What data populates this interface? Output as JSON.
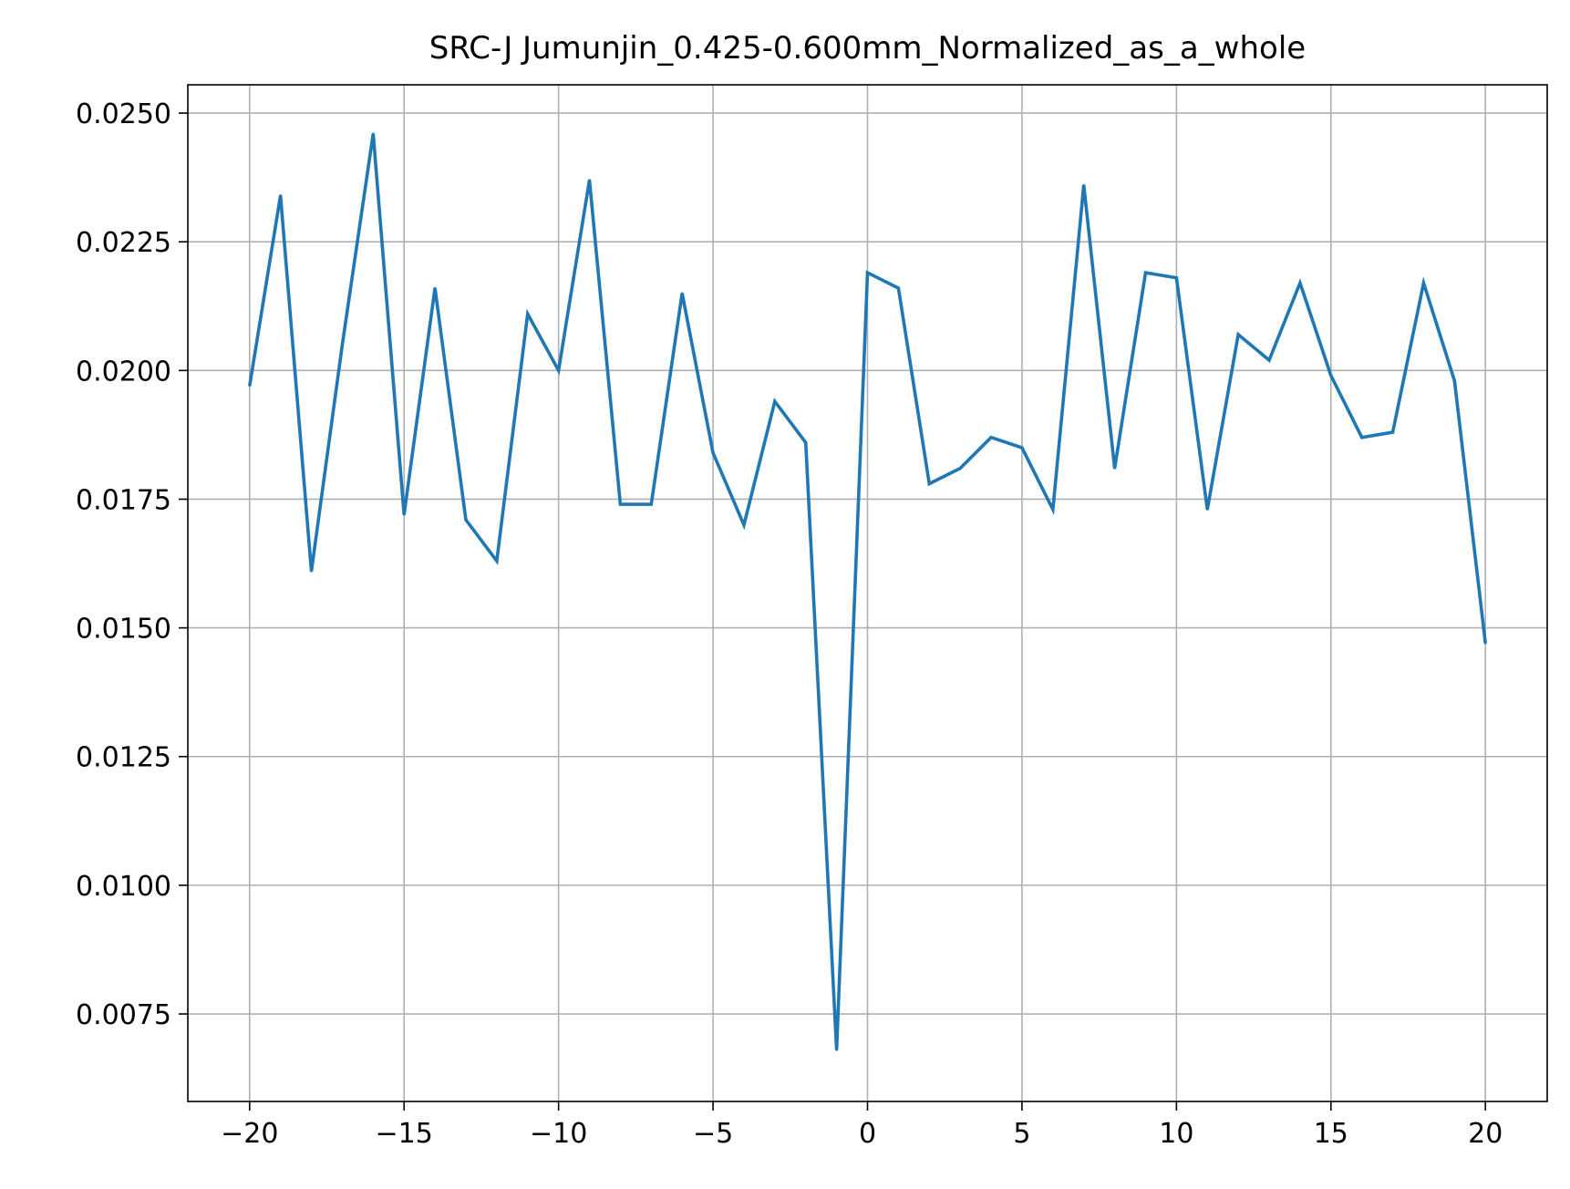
{
  "chart_data": {
    "type": "line",
    "title": "SRC-J Jumunjin_0.425-0.600mm_Normalized_as_a_whole",
    "xlabel": "",
    "ylabel": "",
    "xlim": [
      -22,
      22
    ],
    "ylim": [
      0.0058,
      0.02555
    ],
    "xticks": [
      -20,
      -15,
      -10,
      -5,
      0,
      5,
      10,
      15,
      20
    ],
    "xtick_labels": [
      "−20",
      "−15",
      "−10",
      "−5",
      "0",
      "5",
      "10",
      "15",
      "20"
    ],
    "yticks": [
      0.0075,
      0.01,
      0.0125,
      0.015,
      0.0175,
      0.02,
      0.0225,
      0.025
    ],
    "ytick_labels": [
      "0.0075",
      "0.0100",
      "0.0125",
      "0.0150",
      "0.0175",
      "0.0200",
      "0.0225",
      "0.0250"
    ],
    "grid": true,
    "series": [
      {
        "color": "#1f77b4",
        "x": [
          -20,
          -19,
          -18,
          -17,
          -16,
          -15,
          -14,
          -13,
          -12,
          -11,
          -10,
          -9,
          -8,
          -7,
          -6,
          -5,
          -4,
          -3,
          -2,
          -1,
          0,
          1,
          2,
          3,
          4,
          5,
          6,
          7,
          8,
          9,
          10,
          11,
          12,
          13,
          14,
          15,
          16,
          17,
          18,
          19,
          20
        ],
        "y": [
          0.0197,
          0.0234,
          0.0161,
          0.0205,
          0.0246,
          0.0172,
          0.0216,
          0.0171,
          0.0163,
          0.0211,
          0.02,
          0.0237,
          0.0174,
          0.0174,
          0.0215,
          0.0184,
          0.017,
          0.0194,
          0.0186,
          0.0068,
          0.0219,
          0.0216,
          0.0178,
          0.0181,
          0.0187,
          0.0185,
          0.0173,
          0.0236,
          0.0181,
          0.0219,
          0.0218,
          0.0173,
          0.0207,
          0.0202,
          0.0217,
          0.0199,
          0.0187,
          0.0188,
          0.0217,
          0.0198,
          0.0147
        ]
      }
    ]
  }
}
